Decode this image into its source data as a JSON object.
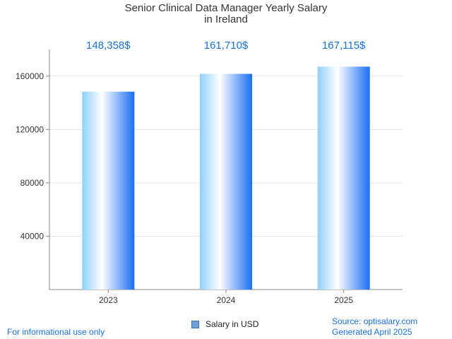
{
  "chart_data": {
    "type": "bar",
    "title": [
      "Senior Clinical Data Manager Yearly Salary",
      "in Ireland"
    ],
    "categories": [
      "2023",
      "2024",
      "2025"
    ],
    "series": [
      {
        "name": "Salary in USD",
        "values": [
          148358,
          161710,
          167115
        ]
      }
    ],
    "value_labels": [
      "148,358$",
      "161,710$",
      "167,115$"
    ],
    "y_ticks": [
      40000,
      80000,
      120000,
      160000
    ],
    "ylim": [
      0,
      180000
    ],
    "xlabel": "",
    "ylabel": "",
    "grid": true,
    "legend": "bottom-center",
    "colors": {
      "bar_edge": "#1a6ff5",
      "bar_light": "#a9dcfa",
      "label": "#1a6fd6",
      "grid": "#e3e3e3",
      "axis": "#888888"
    }
  },
  "footer": {
    "left": "For informational use only",
    "source": "Source: optisalary.com",
    "generated": "Generated April 2025"
  }
}
